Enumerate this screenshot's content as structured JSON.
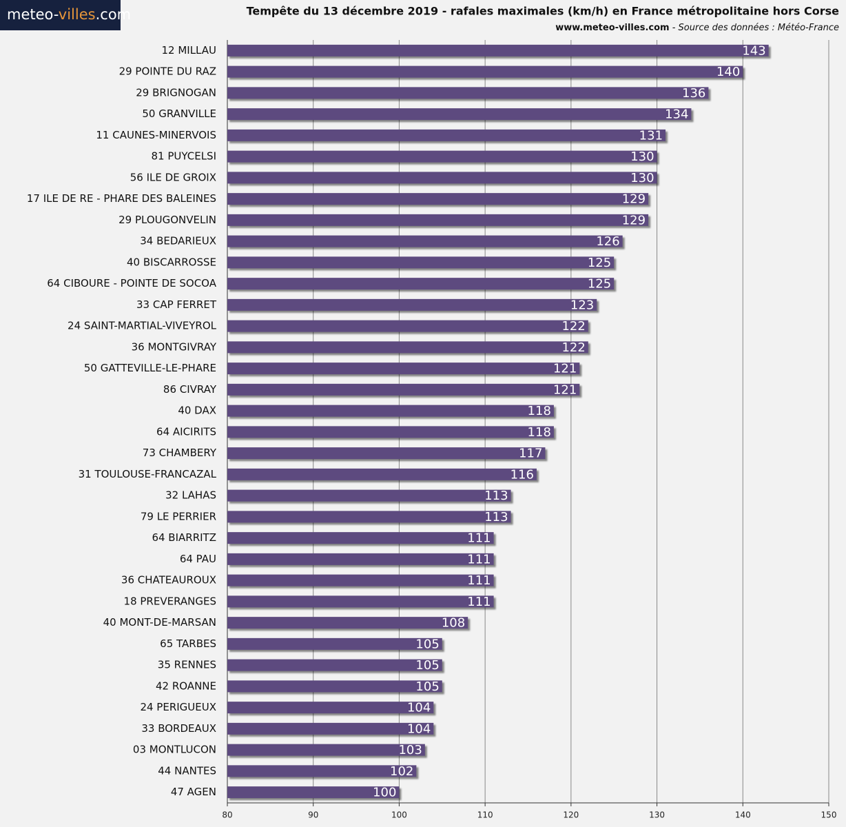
{
  "logo": [
    "meteo-",
    "villes",
    ".com"
  ],
  "chart_data": {
    "type": "barh",
    "title": "Tempête du 13 décembre 2019 - rafales maximales (km/h) en France métropolitaine hors Corse",
    "source": "www.meteo-villes.com",
    "source_note": "- Source des données : Météo-France",
    "categories": [
      "12 MILLAU",
      "29 POINTE DU RAZ",
      "29 BRIGNOGAN",
      "50 GRANVILLE",
      "11 CAUNES-MINERVOIS",
      "81 PUYCELSI",
      "56 ILE DE GROIX",
      "17 ILE DE RE - PHARE DES BALEINES",
      "29 PLOUGONVELIN",
      "34 BEDARIEUX",
      "40 BISCARROSSE",
      "64 CIBOURE - POINTE DE SOCOA",
      "33 CAP FERRET",
      "24 SAINT-MARTIAL-VIVEYROL",
      "36 MONTGIVRAY",
      "50 GATTEVILLE-LE-PHARE",
      "86 CIVRAY",
      "40 DAX",
      "64 AICIRITS",
      "73 CHAMBERY",
      "31 TOULOUSE-FRANCAZAL",
      "32 LAHAS",
      "79 LE PERRIER",
      "64 BIARRITZ",
      "64 PAU",
      "36 CHATEAUROUX",
      "18 PREVERANGES",
      "40 MONT-DE-MARSAN",
      "65 TARBES",
      "35 RENNES",
      "42 ROANNE",
      "24 PERIGUEUX",
      "33 BORDEAUX",
      "03 MONTLUCON",
      "44 NANTES",
      "47 AGEN"
    ],
    "values": [
      143,
      140,
      136,
      134,
      131,
      130,
      130,
      129,
      129,
      126,
      125,
      125,
      123,
      122,
      122,
      121,
      121,
      118,
      118,
      117,
      116,
      113,
      113,
      111,
      111,
      111,
      111,
      108,
      105,
      105,
      105,
      104,
      104,
      103,
      102,
      100
    ],
    "color": "#5d4a7f",
    "xlim": [
      80,
      150
    ],
    "xticks": [
      80,
      90,
      100,
      110,
      120,
      130,
      140,
      150
    ],
    "grid": true
  }
}
